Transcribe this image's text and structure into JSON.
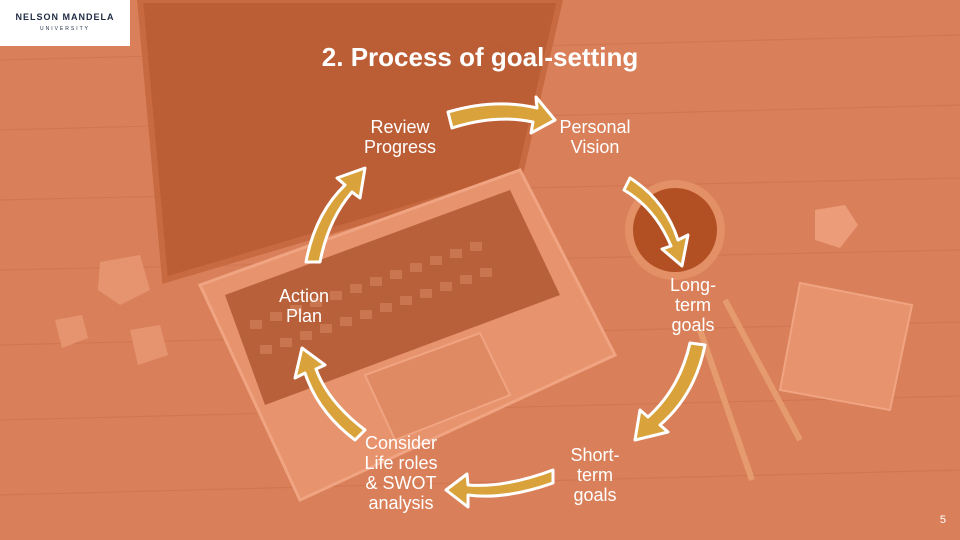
{
  "logo": {
    "name": "NELSON MANDELA",
    "sub": "UNIVERSITY"
  },
  "slide": {
    "title": "2.  Process of goal-setting",
    "page_number": "5"
  },
  "cycle": {
    "steps": [
      "Personal\nVision",
      "Long-\nterm\ngoals",
      "Short-\nterm\ngoals",
      "Consider\nLife roles\n& SWOT\nanalysis",
      "Action\nPlan",
      "Review\nProgress"
    ]
  },
  "colors": {
    "overlay": "#d9805a",
    "arrow_fill": "#d9a23a",
    "arrow_outline": "#ffffff",
    "text": "#ffffff"
  }
}
